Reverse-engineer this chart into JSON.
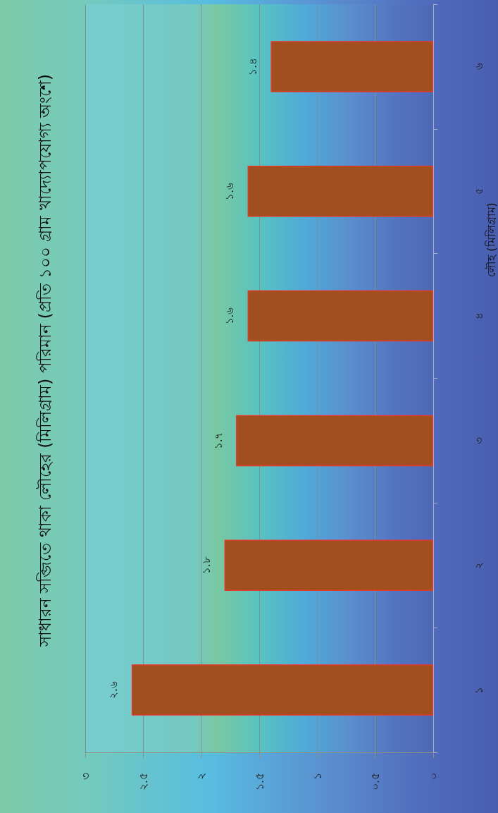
{
  "chart_data": {
    "type": "bar",
    "title": "সাধারন সব্জিতে থাকা লৌহের (মিলিগ্রাম) পরিমান (প্রতি ১০০ গ্রাম খাদ্যোপযোগ্য অংশে)",
    "ylabel": "লৌহ (মিলিগ্রাম)",
    "orientation": "horizontal",
    "categories": [
      "৬",
      "৫",
      "৪",
      "৩",
      "২",
      "১"
    ],
    "values": [
      1.4,
      1.6,
      1.6,
      1.7,
      1.8,
      2.6
    ],
    "value_labels": [
      "১.৪",
      "১.৬",
      "১.৬",
      "১.৭",
      "১.৮",
      "২.৬"
    ],
    "color": "#a24f1f",
    "xlim": [
      3,
      0
    ],
    "xticks": [
      {
        "value": 3,
        "label": "৩"
      },
      {
        "value": 2.5,
        "label": "২.৫"
      },
      {
        "value": 2,
        "label": "২"
      },
      {
        "value": 1.5,
        "label": "১.৫"
      },
      {
        "value": 1,
        "label": "১"
      },
      {
        "value": 0.5,
        "label": "০.৫"
      },
      {
        "value": 0,
        "label": "০"
      }
    ],
    "grid": "x"
  }
}
